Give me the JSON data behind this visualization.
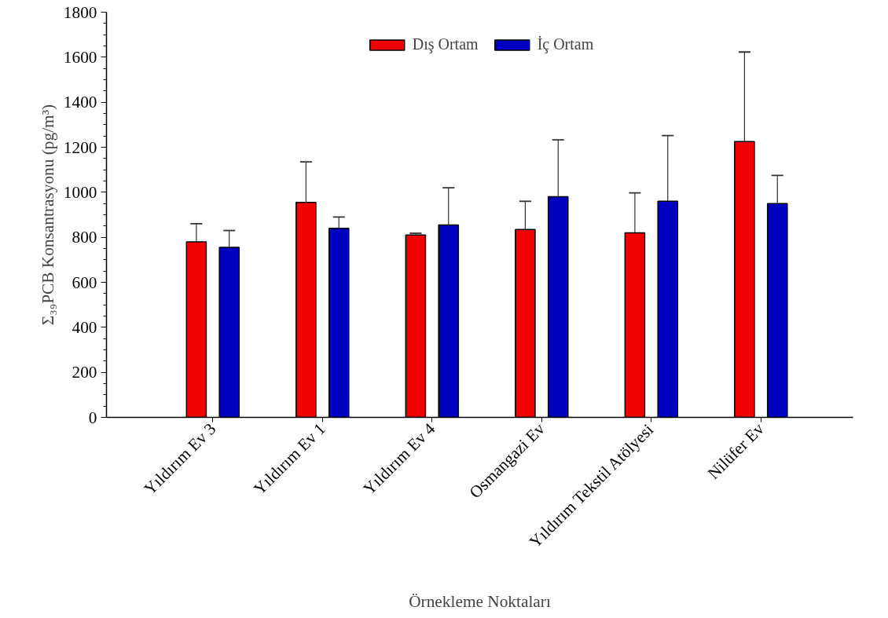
{
  "chart_data": {
    "type": "bar",
    "xlabel": "Örnekleme Noktaları",
    "ylabel": "Σ₃₉PCB Konsantrasyonu (pg/m³)",
    "categories": [
      "Yıldırım Ev 3",
      "Yıldırım Ev 1",
      "Yıldırım Ev 4",
      "Osmangazi Ev",
      "Yıldırım Tekstil Atölyesi",
      "Nilüfer Ev"
    ],
    "series": [
      {
        "name": "Dış Ortam",
        "color": "#f00000",
        "values": [
          780,
          955,
          810,
          835,
          820,
          1225
        ],
        "errors": [
          80,
          180,
          8,
          125,
          177,
          398
        ]
      },
      {
        "name": "İç Ortam",
        "color": "#0000c0",
        "values": [
          755,
          840,
          855,
          980,
          960,
          950
        ],
        "errors": [
          75,
          50,
          165,
          253,
          292,
          125
        ]
      }
    ],
    "ylim": [
      0,
      1800
    ],
    "yticks": [
      0,
      200,
      400,
      600,
      800,
      1000,
      1200,
      1400,
      1600,
      1800
    ],
    "grid": false,
    "legend": "top"
  }
}
